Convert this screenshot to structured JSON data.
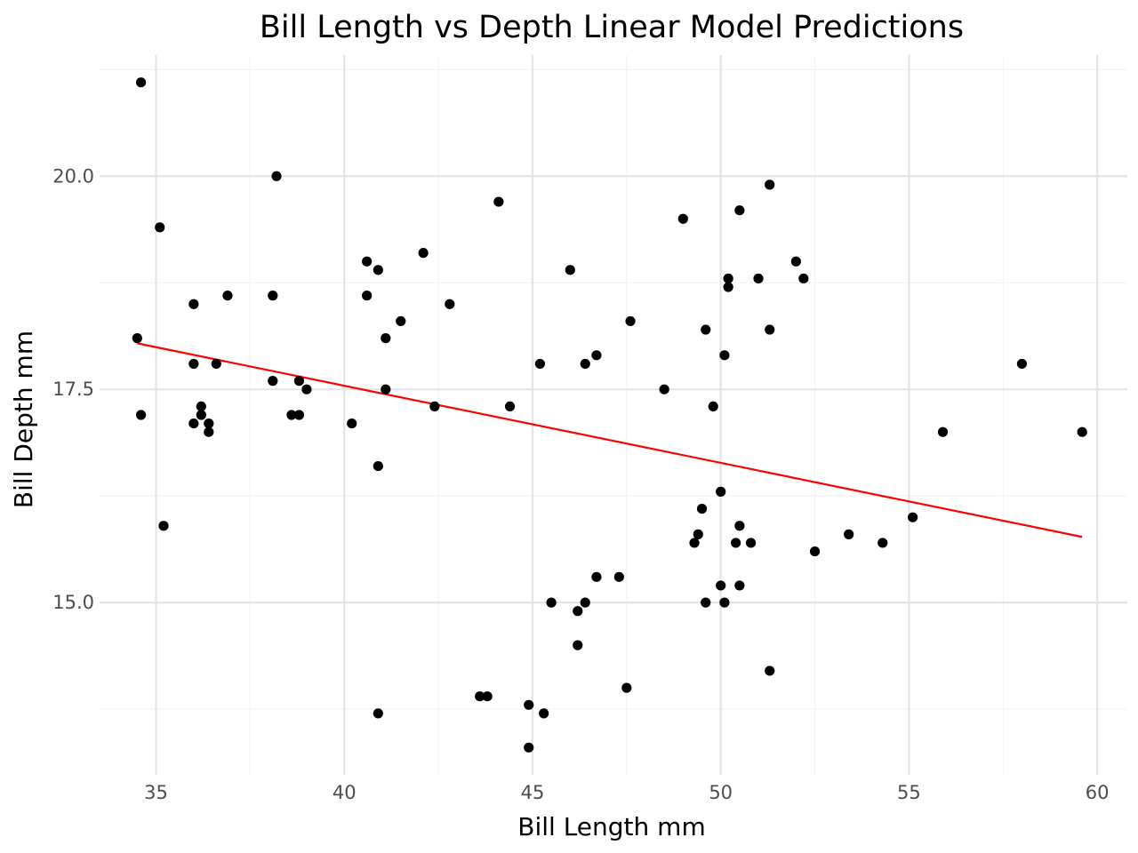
{
  "chart_data": {
    "type": "scatter",
    "title": "Bill Length vs Depth Linear Model Predictions",
    "xlabel": "Bill Length mm",
    "ylabel": "Bill Depth mm",
    "xlim": [
      33.5,
      60.8
    ],
    "ylim": [
      12.98,
      21.42
    ],
    "xticks": [
      35,
      40,
      45,
      50,
      55,
      60
    ],
    "xtick_labels": [
      "35",
      "40",
      "45",
      "50",
      "55",
      "60"
    ],
    "yticks": [
      15.0,
      17.5,
      20.0
    ],
    "ytick_labels": [
      "15.0",
      "17.5",
      "20.0"
    ],
    "grid": true,
    "legend": "none",
    "colors": {
      "points": "#000000",
      "fit_line": "#ff0000"
    },
    "series": [
      {
        "kind": "points",
        "x": [
          34.6,
          35.1,
          34.5,
          34.6,
          35.2,
          36.0,
          36.0,
          36.0,
          36.2,
          36.2,
          36.4,
          36.4,
          36.6,
          36.9,
          38.1,
          38.1,
          38.2,
          38.6,
          38.8,
          38.8,
          39.0,
          40.2,
          40.6,
          40.6,
          40.9,
          40.9,
          40.9,
          41.1,
          41.1,
          41.5,
          42.1,
          42.4,
          42.8,
          43.6,
          43.8,
          44.1,
          44.4,
          44.9,
          44.9,
          45.2,
          45.3,
          45.5,
          46.0,
          46.2,
          46.2,
          46.4,
          46.4,
          46.7,
          46.7,
          47.3,
          47.5,
          47.6,
          48.5,
          49.0,
          49.3,
          49.4,
          49.5,
          49.6,
          49.6,
          49.8,
          50.0,
          50.0,
          50.1,
          50.1,
          50.2,
          50.2,
          50.4,
          50.5,
          50.5,
          50.5,
          50.8,
          51.0,
          51.3,
          51.3,
          51.3,
          52.0,
          52.2,
          52.5,
          53.4,
          54.3,
          55.1,
          55.9,
          58.0,
          59.6
        ],
        "y": [
          21.1,
          19.4,
          18.1,
          17.2,
          15.9,
          18.5,
          17.8,
          17.1,
          17.3,
          17.2,
          17.1,
          17.0,
          17.8,
          18.6,
          18.6,
          17.6,
          20.0,
          17.2,
          17.6,
          17.2,
          17.5,
          17.1,
          19.0,
          18.6,
          18.9,
          16.6,
          13.7,
          18.1,
          17.5,
          18.3,
          19.1,
          17.3,
          18.5,
          13.9,
          13.9,
          19.7,
          17.3,
          13.8,
          13.3,
          17.8,
          13.7,
          15.0,
          18.9,
          14.9,
          14.5,
          17.8,
          15.0,
          17.9,
          15.3,
          15.3,
          14.0,
          18.3,
          17.5,
          19.5,
          15.7,
          15.8,
          16.1,
          18.2,
          15.0,
          17.3,
          16.3,
          15.2,
          17.9,
          15.0,
          18.8,
          18.7,
          15.7,
          19.6,
          15.9,
          15.2,
          15.7,
          18.8,
          19.9,
          18.2,
          14.2,
          19.0,
          18.8,
          15.6,
          15.8,
          15.7,
          16.0,
          17.0,
          17.8,
          17.0
        ]
      },
      {
        "kind": "line",
        "x": [
          34.5,
          59.6
        ],
        "y": [
          18.04,
          15.77
        ]
      }
    ]
  }
}
